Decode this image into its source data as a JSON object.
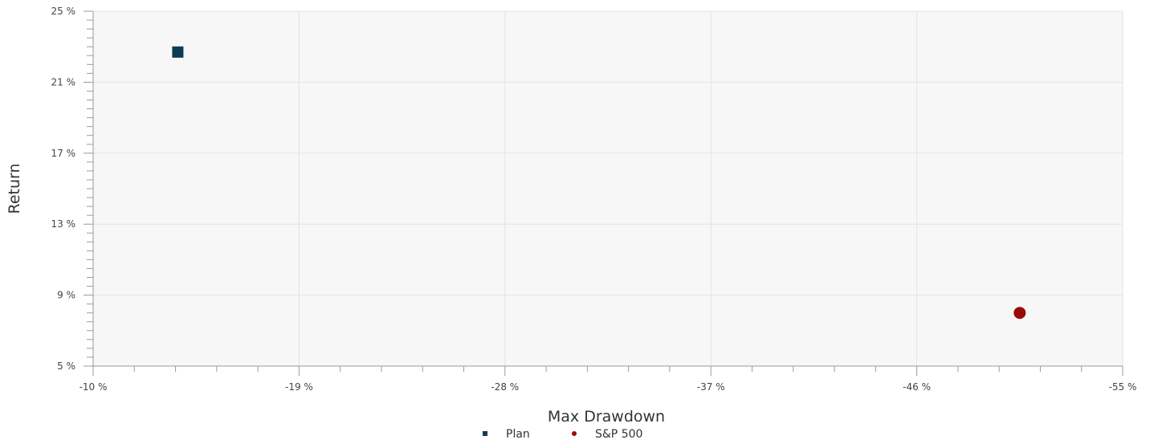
{
  "chart_data": {
    "type": "scatter",
    "xlabel": "Max Drawdown",
    "ylabel": "Return",
    "x_ticks": [
      "-10 %",
      "-19 %",
      "-28 %",
      "-37 %",
      "-46 %",
      "-55 %"
    ],
    "x_tick_values": [
      -10,
      -19,
      -28,
      -37,
      -46,
      -55
    ],
    "y_ticks": [
      "25 %",
      "21 %",
      "17 %",
      "13 %",
      "9 %",
      "5 %"
    ],
    "y_tick_values": [
      25,
      21,
      17,
      13,
      9,
      5
    ],
    "xlim": [
      -10,
      -55
    ],
    "ylim": [
      5,
      25
    ],
    "x_reversed": true,
    "grid": true,
    "legend_position": "bottom-center",
    "series": [
      {
        "name": "Plan",
        "marker": "square",
        "color": "#0d3b56",
        "points": [
          {
            "x": -13.7,
            "y": 22.7
          }
        ]
      },
      {
        "name": "S&P 500",
        "marker": "circle",
        "color": "#9b0a0a",
        "points": [
          {
            "x": -50.5,
            "y": 8.0
          }
        ]
      }
    ],
    "colors": {
      "plot_background": "#f7f7f7",
      "grid": "#e3e3e3",
      "axis": "#9a9a9a"
    }
  }
}
